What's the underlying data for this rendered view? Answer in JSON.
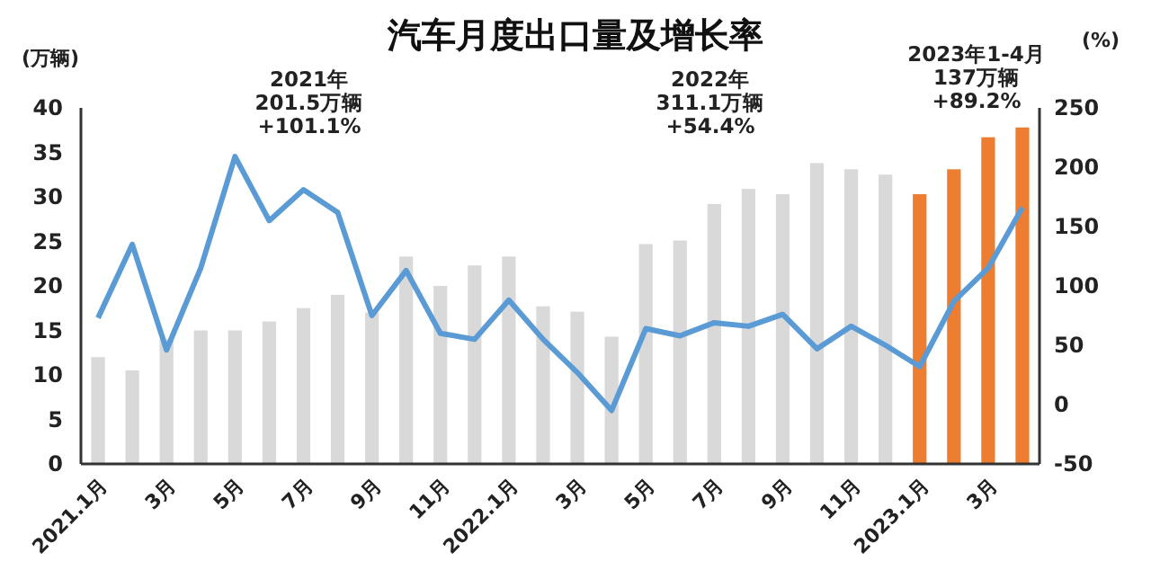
{
  "chart_data": {
    "type": "bar",
    "title": "汽车月度出口量及增长率",
    "ylabel": "(万辆)",
    "y2label": "(%)",
    "categories": [
      "2021.1月",
      null,
      "3月",
      null,
      "5月",
      null,
      "7月",
      null,
      "9月",
      null,
      "11月",
      null,
      "2022.1月",
      null,
      "3月",
      null,
      "5月",
      null,
      "7月",
      null,
      "9月",
      null,
      "11月",
      null,
      "2023.1月",
      null,
      "3月",
      null
    ],
    "series": [
      {
        "colors": [
          "#d9d9d9",
          "#d9d9d9",
          "#d9d9d9",
          "#d9d9d9",
          "#d9d9d9",
          "#d9d9d9",
          "#d9d9d9",
          "#d9d9d9",
          "#d9d9d9",
          "#d9d9d9",
          "#d9d9d9",
          "#d9d9d9",
          "#d9d9d9",
          "#d9d9d9",
          "#d9d9d9",
          "#d9d9d9",
          "#d9d9d9",
          "#d9d9d9",
          "#d9d9d9",
          "#d9d9d9",
          "#d9d9d9",
          "#d9d9d9",
          "#d9d9d9",
          "#d9d9d9",
          "#ed7d31",
          "#ed7d31",
          "#ed7d31",
          "#ed7d31"
        ],
        "values": [
          12,
          10.5,
          14,
          15,
          15,
          16,
          17.5,
          19,
          17,
          23.3,
          20,
          22.3,
          23.3,
          17.7,
          17.1,
          14.3,
          24.7,
          25.1,
          29.2,
          30.9,
          30.3,
          33.8,
          33.1,
          32.5,
          30.3,
          33.1,
          36.7,
          37.8
        ]
      },
      {
        "type": "line",
        "axis": "y2",
        "color": "#5b9bd5",
        "values": [
          73,
          135,
          46,
          115,
          209,
          155,
          181,
          162,
          75,
          113,
          60,
          55,
          88,
          55,
          27,
          -5,
          64,
          58,
          69,
          66,
          76,
          47,
          66,
          50,
          32,
          87,
          115,
          166
        ]
      }
    ],
    "ylim": [
      0,
      40
    ],
    "yticks": [
      0,
      5,
      10,
      15,
      20,
      25,
      30,
      35,
      40
    ],
    "y2lim": [
      -50,
      250
    ],
    "y2ticks": [
      -50,
      0,
      50,
      100,
      150,
      200,
      250
    ],
    "annotations": [
      "2021年\n201.5万辆\n+101.1%",
      "2022年\n311.1万辆\n+54.4%",
      "2023年1-4月\n137万辆\n+89.2%"
    ],
    "grid": false,
    "marker": "none"
  }
}
